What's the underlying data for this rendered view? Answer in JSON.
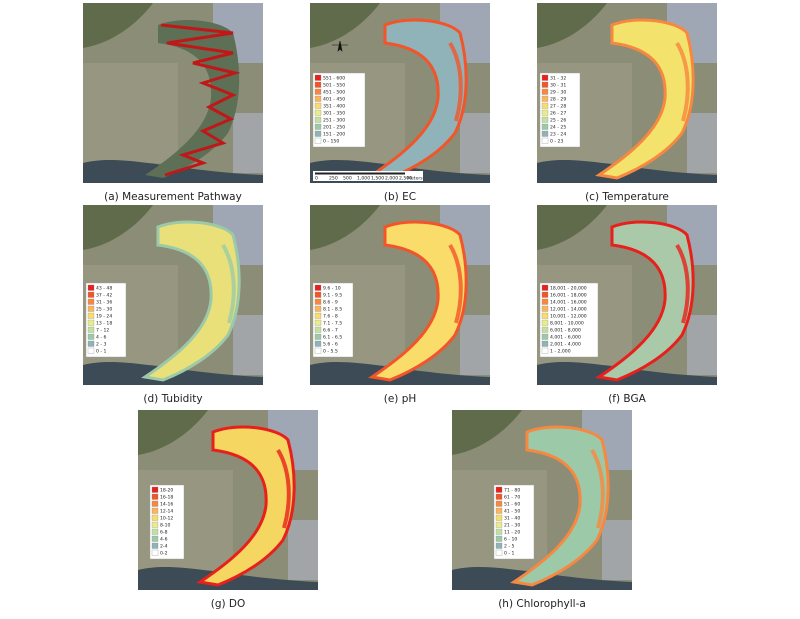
{
  "legend_colors": [
    "#e8201c",
    "#f2552a",
    "#f7883f",
    "#fbb35c",
    "#f9dc6a",
    "#e9ec8a",
    "#c3e0a0",
    "#9ccaa8",
    "#8fb3b8",
    "#ffffff"
  ],
  "scale_bar": [
    "0",
    "250",
    "500",
    "1,000",
    "1,500",
    "2,000",
    "2,500",
    "Meters"
  ],
  "panels": [
    {
      "caption": "(a) Measurement Pathway"
    },
    {
      "caption": "(b) EC",
      "legend": [
        "551 - 600",
        "501 - 550",
        "451 - 500",
        "401 - 450",
        "351 - 400",
        "301 - 350",
        "251 - 300",
        "201 - 250",
        "151 - 200",
        "0 - 150"
      ]
    },
    {
      "caption": "(c) Temperature",
      "legend": [
        "31 - 32",
        "30 - 31",
        "29 - 30",
        "28 - 29",
        "27 - 28",
        "26 - 27",
        "25 - 26",
        "24 - 25",
        "23 - 24",
        "0 - 23"
      ]
    },
    {
      "caption": "(d) Tubidity",
      "legend": [
        "43 - 48",
        "37 - 42",
        "31 - 36",
        "25 - 30",
        "19 - 24",
        "13 - 18",
        "7 - 12",
        "4 - 6",
        "2 - 3",
        "0 - 1"
      ]
    },
    {
      "caption": "(e) pH",
      "legend": [
        "9.6 - 10",
        "9.1 - 9.5",
        "8.6 - 9",
        "8.1 - 8.5",
        "7.6 - 8",
        "7.1 - 7.5",
        "6.6 - 7",
        "6.1 - 6.5",
        "5.6 - 6",
        "0 - 5.5"
      ]
    },
    {
      "caption": "(f) BGA",
      "legend": [
        "18,001 - 20,000",
        "16,001 - 18,000",
        "14,001 - 16,000",
        "12,001 - 14,000",
        "10,001 - 12,000",
        "8,001 - 10,000",
        "6,001 - 8,000",
        "4,001 - 6,000",
        "2,001 - 4,000",
        "1 - 2,000"
      ]
    },
    {
      "caption": "(g) DO",
      "legend": [
        "18-20",
        "16-18",
        "14-16",
        "12-14",
        "10-12",
        "8-10",
        "6-8",
        "4-6",
        "2-4",
        "0-2"
      ]
    },
    {
      "caption": "(h) Chlorophyll-a",
      "legend": [
        "71 - 80",
        "61 - 70",
        "51 - 60",
        "41 - 50",
        "31 - 40",
        "21 - 30",
        "11 - 20",
        "6 - 10",
        "2 - 5",
        "0 - 1"
      ]
    }
  ]
}
